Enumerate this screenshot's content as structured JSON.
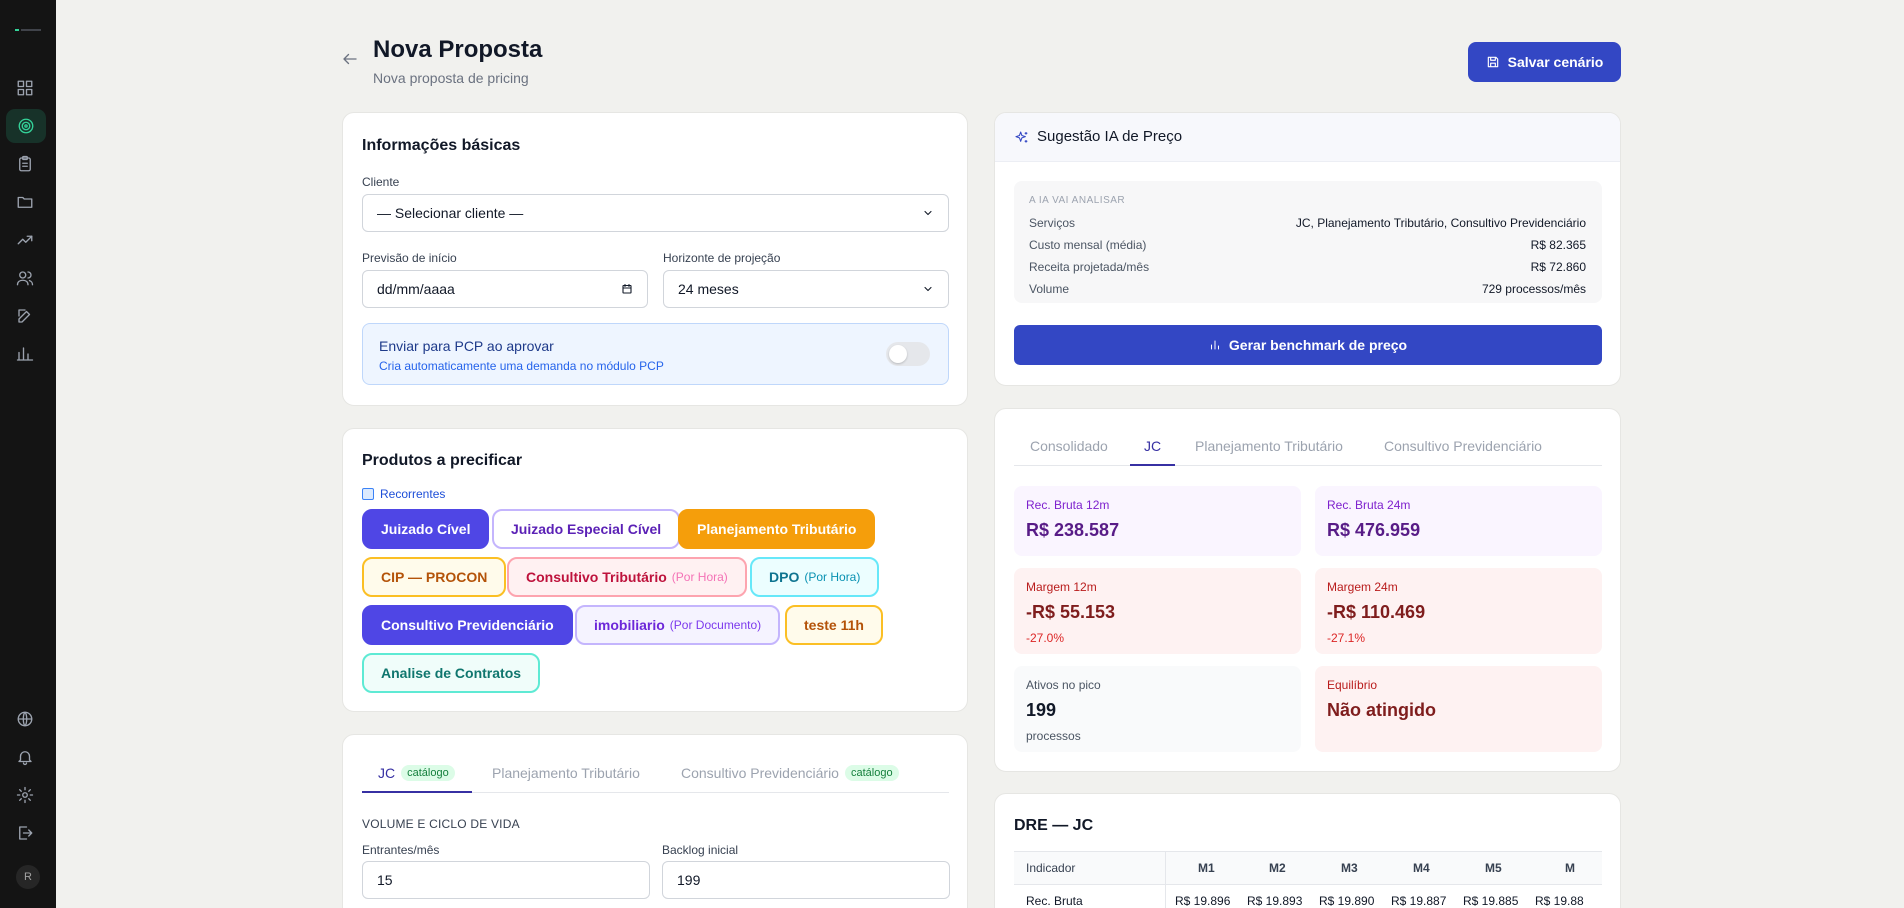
{
  "header": {
    "title": "Nova Proposta",
    "subtitle": "Nova proposta de pricing",
    "save_label": "Salvar cenário"
  },
  "sidebar": {
    "items": [
      "dashboard-icon",
      "target-icon",
      "clipboard-icon",
      "folder-icon",
      "trending-up-icon",
      "users-icon",
      "edit-icon",
      "bar-chart-icon"
    ],
    "bottom": [
      "globe-icon",
      "bell-icon",
      "settings-icon",
      "logout-icon"
    ],
    "avatar": "R",
    "active_color": "#34d399"
  },
  "basic_info": {
    "title": "Informações básicas",
    "client_label": "Cliente",
    "client_value": "— Selecionar cliente —",
    "start_label": "Previsão de início",
    "start_value": "dd/mm/aaaa",
    "horizon_label": "Horizonte de projeção",
    "horizon_value": "24 meses",
    "pcp_title": "Enviar para PCP ao aprovar",
    "pcp_sub": "Cria automaticamente uma demanda no módulo PCP"
  },
  "products": {
    "title": "Produtos a precificar",
    "recorrentes": "Recorrentes",
    "chips": [
      {
        "label": "Juizado Cível",
        "sub": ""
      },
      {
        "label": "Juizado Especial Cível",
        "sub": ""
      },
      {
        "label": "Planejamento Tributário",
        "sub": ""
      },
      {
        "label": "CIP — PROCON",
        "sub": ""
      },
      {
        "label": "Consultivo Tributário",
        "sub": "(Por Hora)"
      },
      {
        "label": "DPO",
        "sub": "(Por Hora)"
      },
      {
        "label": "Consultivo Previdenciário",
        "sub": ""
      },
      {
        "label": "imobiliario",
        "sub": "(Por Documento)"
      },
      {
        "label": "teste 11h",
        "sub": ""
      },
      {
        "label": "Analise de Contratos",
        "sub": ""
      }
    ]
  },
  "config": {
    "tabs": [
      {
        "label": "JC",
        "badge": "catálogo"
      },
      {
        "label": "Planejamento Tributário",
        "badge": ""
      },
      {
        "label": "Consultivo Previdenciário",
        "badge": "catálogo"
      }
    ],
    "section": "VOLUME E CICLO DE VIDA",
    "entrantes_label": "Entrantes/mês",
    "entrantes_value": "15",
    "backlog_label": "Backlog inicial",
    "backlog_value": "199"
  },
  "ia": {
    "title": "Sugestão IA de Preço",
    "caption": "A IA VAI ANALISAR",
    "rows": [
      {
        "k": "Serviços",
        "v": "JC, Planejamento Tributário, Consultivo Previdenciário"
      },
      {
        "k": "Custo mensal (média)",
        "v": "R$ 82.365"
      },
      {
        "k": "Receita projetada/mês",
        "v": "R$ 72.860"
      },
      {
        "k": "Volume",
        "v": "729 processos/mês"
      }
    ],
    "button": "Gerar benchmark de preço"
  },
  "results": {
    "tabs": [
      "Consolidado",
      "JC",
      "Planejamento Tributário",
      "Consultivo Previdenciário"
    ],
    "kpis": [
      {
        "k": "Rec. Bruta 12m",
        "v": "R$ 238.587",
        "s": ""
      },
      {
        "k": "Rec. Bruta 24m",
        "v": "R$ 476.959",
        "s": ""
      },
      {
        "k": "Margem 12m",
        "v": "-R$ 55.153",
        "s": "-27.0%"
      },
      {
        "k": "Margem 24m",
        "v": "-R$ 110.469",
        "s": "-27.1%"
      },
      {
        "k": "Ativos no pico",
        "v": "199",
        "s": "processos"
      },
      {
        "k": "Equilíbrio",
        "v": "Não atingido",
        "s": ""
      }
    ]
  },
  "dre": {
    "title": "DRE — JC",
    "headers": [
      "Indicador",
      "M1",
      "M2",
      "M3",
      "M4",
      "M5",
      "M"
    ],
    "row": [
      "Rec. Bruta",
      "R$ 19.896",
      "R$ 19.893",
      "R$ 19.890",
      "R$ 19.887",
      "R$ 19.885",
      "R$ 19.88"
    ]
  }
}
